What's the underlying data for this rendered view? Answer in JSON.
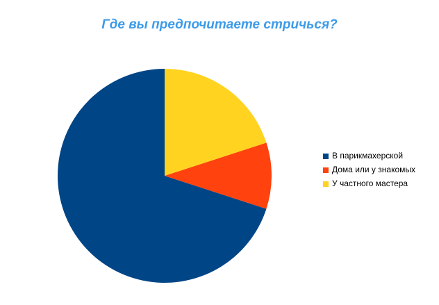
{
  "chart_data": {
    "type": "pie",
    "title": "Где вы предпочитаете стричься?",
    "categories": [
      "В парикмахерской",
      "Дома или у знакомых",
      "У частного мастера"
    ],
    "values": [
      70,
      10,
      20
    ],
    "colors": [
      "#004586",
      "#ff420e",
      "#ffd320"
    ],
    "legend": "right"
  }
}
